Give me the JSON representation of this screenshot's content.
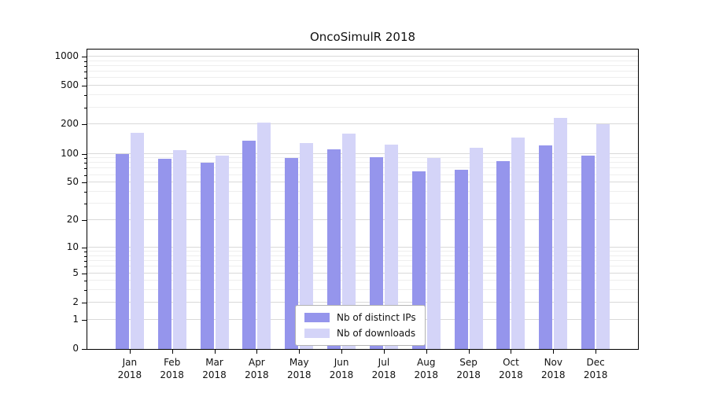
{
  "chart_data": {
    "type": "bar",
    "title": "OncoSimulR 2018",
    "yscale": "log10(1+x)",
    "categories": [
      "Jan",
      "Feb",
      "Mar",
      "Apr",
      "May",
      "Jun",
      "Jul",
      "Aug",
      "Sep",
      "Oct",
      "Nov",
      "Dec"
    ],
    "year": "2018",
    "series": [
      {
        "name": "Nb of distinct IPs",
        "color": "#9595ec",
        "values": [
          100,
          88,
          80,
          135,
          90,
          110,
          92,
          65,
          68,
          84,
          122,
          95
        ]
      },
      {
        "name": "Nb of downloads",
        "color": "#d4d4f8",
        "values": [
          165,
          108,
          95,
          210,
          130,
          160,
          125,
          90,
          115,
          148,
          235,
          200
        ]
      }
    ],
    "yticks": [
      0,
      1,
      2,
      5,
      10,
      20,
      50,
      100,
      200,
      500,
      1000
    ],
    "minor_yticks": [
      3,
      4,
      6,
      7,
      8,
      9,
      30,
      40,
      60,
      70,
      80,
      90,
      300,
      400,
      600,
      700,
      800,
      900
    ],
    "ylim": [
      0,
      1000
    ],
    "grid": true,
    "legend_position": "lower center"
  }
}
